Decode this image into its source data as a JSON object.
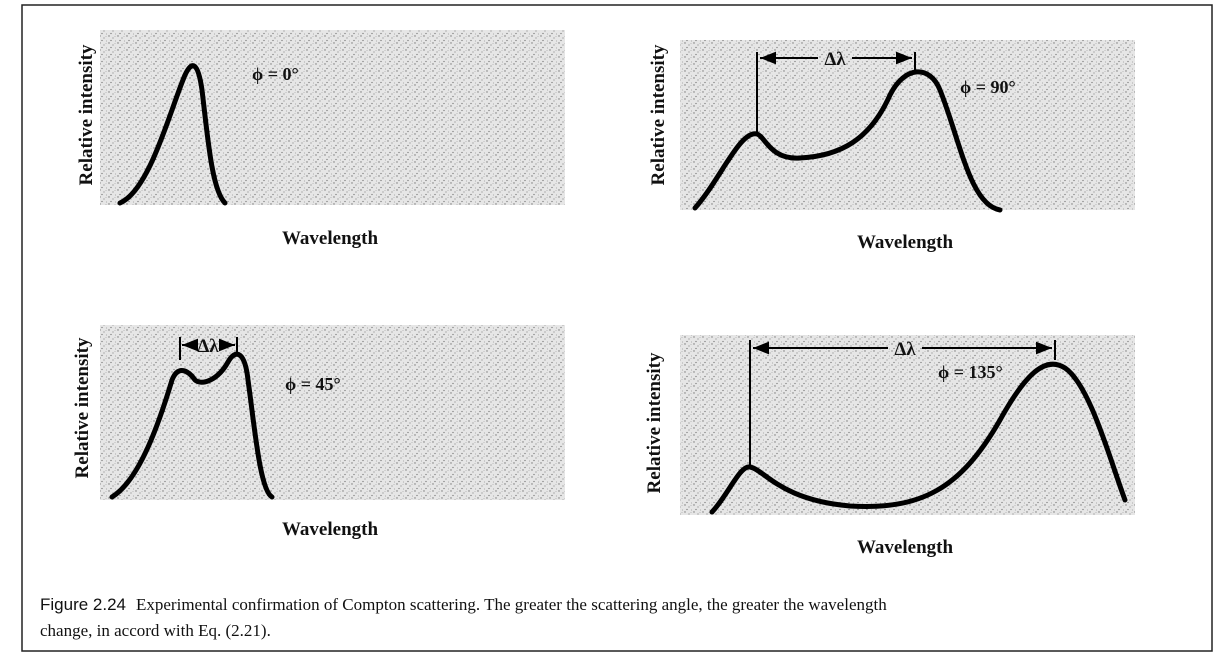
{
  "panels": [
    {
      "y_label": "Relative intensity",
      "x_label": "Wavelength",
      "angle": "ϕ = 0°"
    },
    {
      "y_label": "Relative intensity",
      "x_label": "Wavelength",
      "angle": "ϕ = 90°",
      "delta": "Δλ"
    },
    {
      "y_label": "Relative intensity",
      "x_label": "Wavelength",
      "angle": "ϕ = 45°",
      "delta": "Δλ"
    },
    {
      "y_label": "Relative intensity",
      "x_label": "Wavelength",
      "angle": "ϕ = 135°",
      "delta": "Δλ"
    }
  ],
  "caption": {
    "label": "Figure 2.24",
    "text": [
      "Experimental confirmation of Compton scattering. The greater the scattering angle, the greater the wavelength",
      "change, in accord with Eq. (2.21)."
    ]
  }
}
